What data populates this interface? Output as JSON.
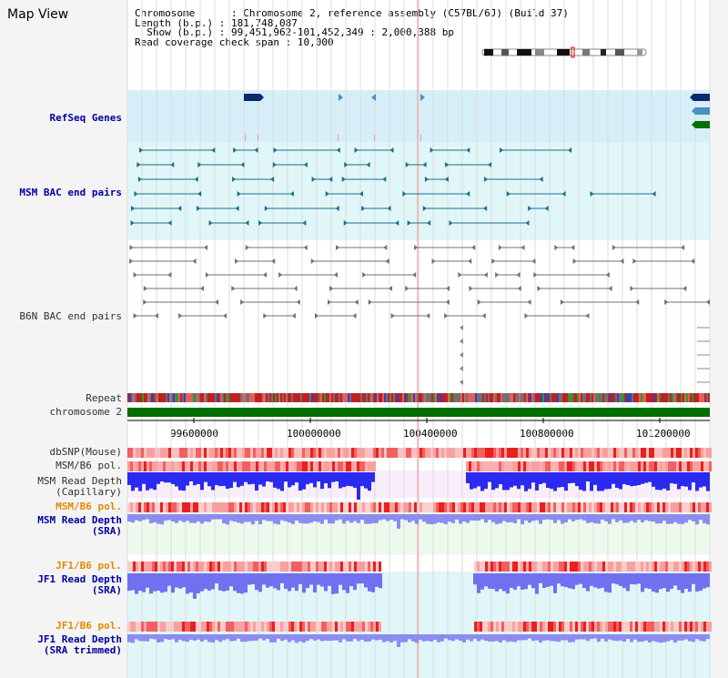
{
  "page_title": "Map View",
  "info": {
    "chromosome_label": "Chromosome",
    "chromosome_value": "Chromosome 2, reference assembly (C57BL/6J) (Build 37)",
    "length_label": "Length (b.p.)",
    "length_value": "181,748,087",
    "show_label": "Show (b.p.)",
    "show_value": "99,451,962-101,452,349 : 2,000,388 bp",
    "coverage_label": "Read coverage check span",
    "coverage_value": "10,000"
  },
  "tracks": {
    "refseq_genes": "RefSeq Genes",
    "msm_bac": "MSM BAC end pairs",
    "b6n_bac": "B6N BAC end pairs",
    "repeat": "Repeat",
    "chromosome": "chromosome 2",
    "dbsnp": "dbSNP(Mouse)",
    "msm_b6_pol": "MSM/B6 pol.",
    "msm_read_depth_cap": "MSM Read Depth\n(Capillary)",
    "msm_b6_pol_2": "MSM/B6 pol.",
    "msm_read_depth_sra": "MSM Read Depth\n(SRA)",
    "jf1_b6_pol": "JF1/B6 pol.",
    "jf1_read_depth_sra": "JF1 Read Depth\n(SRA)",
    "jf1_b6_pol_2": "JF1/B6 pol.",
    "jf1_read_depth_trim": "JF1 Read Depth\n(SRA trimmed)"
  },
  "axis": {
    "ticks": [
      "99600000",
      "100000000",
      "100400000",
      "100800000",
      "101200000"
    ]
  },
  "colors": {
    "refseq_bg": "#d6eef8",
    "msm_bac_bg": "#e0f6f8",
    "msm_bac_feature": "#1a6e8a",
    "b6n_bac_feature": "#707070",
    "gene_dark": "#0a2a6e",
    "gene_mid": "#4a90c0",
    "gene_green": "#007000",
    "chromosome_bar": "#007000",
    "depth_blue": "#3030e0",
    "depth_light": "#8080f0",
    "pol_red": "#e02020",
    "cursor_line": "#ff9090"
  },
  "icons": {
    "karyotype": "chromosome-ideogram-icon"
  }
}
